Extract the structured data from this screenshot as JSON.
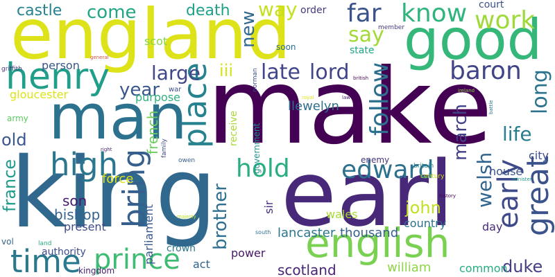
{
  "word_cloud": {
    "words": [
      {
        "text": "make",
        "color": "#440154"
      },
      {
        "text": "king",
        "color": "#31688e"
      },
      {
        "text": "earl",
        "color": "#482878"
      },
      {
        "text": "england",
        "color": "#dde318"
      },
      {
        "text": "man",
        "color": "#2c728e"
      },
      {
        "text": "good",
        "color": "#35b779"
      },
      {
        "text": "english",
        "color": "#7ad151"
      },
      {
        "text": "henry",
        "color": "#1f9e89"
      },
      {
        "text": "time",
        "color": "#2a788e"
      },
      {
        "text": "prince",
        "color": "#3fbc73"
      },
      {
        "text": "place",
        "color": "#26828e"
      },
      {
        "text": "high",
        "color": "#2a768e"
      },
      {
        "text": "bring",
        "color": "#35608d"
      },
      {
        "text": "hold",
        "color": "#29af7f"
      },
      {
        "text": "edward",
        "color": "#2c718e"
      },
      {
        "text": "great",
        "color": "#3b528b"
      },
      {
        "text": "early",
        "color": "#3e4a89"
      },
      {
        "text": "baron",
        "color": "#414487"
      },
      {
        "text": "work",
        "color": "#9fda3a"
      },
      {
        "text": "know",
        "color": "#2fb47c"
      },
      {
        "text": "far",
        "color": "#3a538b"
      },
      {
        "text": "say",
        "color": "#a2da37"
      },
      {
        "text": "large",
        "color": "#3f4788"
      },
      {
        "text": "late",
        "color": "#404688"
      },
      {
        "text": "lord",
        "color": "#404588"
      },
      {
        "text": "follow",
        "color": "#2d708e"
      },
      {
        "text": "iii",
        "color": "#d8e219"
      },
      {
        "text": "year",
        "color": "#38588c"
      },
      {
        "text": "long",
        "color": "#2c738e"
      },
      {
        "text": "life",
        "color": "#287d8e"
      },
      {
        "text": "march",
        "color": "#424086"
      },
      {
        "text": "come",
        "color": "#21a685"
      },
      {
        "text": "castle",
        "color": "#26828e"
      },
      {
        "text": "death",
        "color": "#1fa188"
      },
      {
        "text": "way",
        "color": "#c5e021"
      },
      {
        "text": "new",
        "color": "#31688e"
      },
      {
        "text": "court",
        "color": "#3c4f8a"
      },
      {
        "text": "order",
        "color": "#453781"
      },
      {
        "text": "scot",
        "color": "#86d549"
      },
      {
        "text": "person",
        "color": "#39568c"
      },
      {
        "text": "gloucester",
        "color": "#dde318"
      },
      {
        "text": "purpose",
        "color": "#2db27d"
      },
      {
        "text": "llewelyn",
        "color": "#2e6f8e"
      },
      {
        "text": "old",
        "color": "#38588c"
      },
      {
        "text": "french",
        "color": "#6ccd5a"
      },
      {
        "text": "france",
        "color": "#1e9b8a"
      },
      {
        "text": "force",
        "color": "#dce319"
      },
      {
        "text": "son",
        "color": "#481a6c"
      },
      {
        "text": "bishop",
        "color": "#33638d"
      },
      {
        "text": "present",
        "color": "#3e4c8a"
      },
      {
        "text": "welsh",
        "color": "#32658e"
      },
      {
        "text": "john",
        "color": "#c2df23"
      },
      {
        "text": "brother",
        "color": "#2e6e8e"
      },
      {
        "text": "lancaster",
        "color": "#2b748e"
      },
      {
        "text": "thousand",
        "color": "#355f8d"
      },
      {
        "text": "scotland",
        "color": "#482475"
      },
      {
        "text": "william",
        "color": "#8ed645"
      },
      {
        "text": "duke",
        "color": "#433e85"
      },
      {
        "text": "house",
        "color": "#3b528b"
      },
      {
        "text": "city",
        "color": "#3d4e8a"
      },
      {
        "text": "day",
        "color": "#472d7b"
      },
      {
        "text": "common",
        "color": "#26ad81"
      },
      {
        "text": "country",
        "color": "#2d718e"
      },
      {
        "text": "wales",
        "color": "#a8db34"
      },
      {
        "text": "sir",
        "color": "#472f7d"
      },
      {
        "text": "power",
        "color": "#481769"
      },
      {
        "text": "parliament",
        "color": "#38598c"
      },
      {
        "text": "crown",
        "color": "#2a778e"
      },
      {
        "text": "act",
        "color": "#33638d"
      },
      {
        "text": "authority",
        "color": "#3d4d8a"
      },
      {
        "text": "kingdom",
        "color": "#482071"
      },
      {
        "text": "receive",
        "color": "#a8db34"
      },
      {
        "text": "government",
        "color": "#218f8d"
      },
      {
        "text": "enemy",
        "color": "#46337f"
      },
      {
        "text": "state",
        "color": "#20a386"
      },
      {
        "text": "soon",
        "color": "#2d708e"
      },
      {
        "text": "member",
        "color": "#443983"
      },
      {
        "text": "norman",
        "color": "#3e4c8a"
      },
      {
        "text": "army",
        "color": "#5ec962"
      },
      {
        "text": "vol",
        "color": "#31678e"
      },
      {
        "text": "land",
        "color": "#29af7f"
      },
      {
        "text": "griffith",
        "color": "#443983"
      },
      {
        "text": "general",
        "color": "#dd513a"
      },
      {
        "text": "war",
        "color": "#3d4e8a"
      },
      {
        "text": "royal",
        "color": "#dde318"
      },
      {
        "text": "law",
        "color": "#471063"
      },
      {
        "text": "british",
        "color": "#46075a"
      },
      {
        "text": "ireland",
        "color": "#89d548"
      },
      {
        "text": "battle",
        "color": "#2d718e"
      },
      {
        "text": "family",
        "color": "#3e4a89"
      },
      {
        "text": "owen",
        "color": "#375b8d"
      },
      {
        "text": "right",
        "color": "#481f70"
      },
      {
        "text": "britain",
        "color": "#25848e"
      },
      {
        "text": "century",
        "color": "#d0e11c"
      },
      {
        "text": "minister",
        "color": "#1f948c"
      },
      {
        "text": "history",
        "color": "#440154"
      },
      {
        "text": "majesty",
        "color": "#b5de2b"
      },
      {
        "text": "south",
        "color": "#2e6e8e"
      }
    ]
  }
}
